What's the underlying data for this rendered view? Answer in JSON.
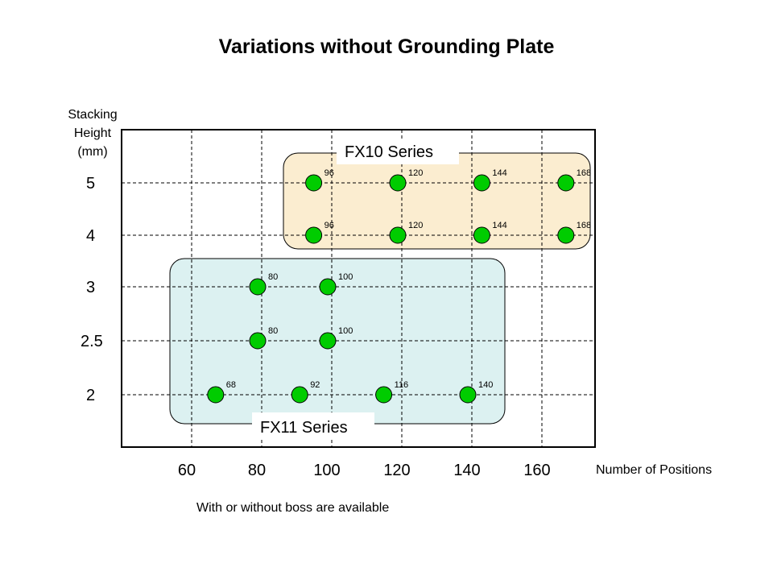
{
  "chart_data": {
    "type": "scatter",
    "title": "Variations without Grounding Plate",
    "xlabel": "Number of Positions",
    "ylabel": [
      "Stacking",
      "Height",
      "(mm)"
    ],
    "footnote": "With or without boss are available",
    "x_ticks": [
      "60",
      "80",
      "100",
      "120",
      "140",
      "160"
    ],
    "x_tick_values": [
      60,
      80,
      100,
      120,
      140,
      160
    ],
    "xlim": [
      40,
      175
    ],
    "y_categories": [
      "5",
      "4",
      "3",
      "2.5",
      "2"
    ],
    "grid": true,
    "series": [
      {
        "name": "FX10 Series",
        "points": [
          {
            "x": 96,
            "y": "5",
            "label": "96"
          },
          {
            "x": 120,
            "y": "5",
            "label": "120"
          },
          {
            "x": 144,
            "y": "5",
            "label": "144"
          },
          {
            "x": 168,
            "y": "5",
            "label": "168"
          },
          {
            "x": 96,
            "y": "4",
            "label": "96"
          },
          {
            "x": 120,
            "y": "4",
            "label": "120"
          },
          {
            "x": 144,
            "y": "4",
            "label": "144"
          },
          {
            "x": 168,
            "y": "4",
            "label": "168"
          }
        ]
      },
      {
        "name": "FX11 Series",
        "points": [
          {
            "x": 80,
            "y": "3",
            "label": "80"
          },
          {
            "x": 100,
            "y": "3",
            "label": "100"
          },
          {
            "x": 80,
            "y": "2.5",
            "label": "80"
          },
          {
            "x": 100,
            "y": "2.5",
            "label": "100"
          },
          {
            "x": 68,
            "y": "2",
            "label": "68"
          },
          {
            "x": 92,
            "y": "2",
            "label": "92"
          },
          {
            "x": 116,
            "y": "2",
            "label": "116"
          },
          {
            "x": 140,
            "y": "2",
            "label": "140"
          }
        ]
      }
    ],
    "colors": {
      "marker_fill": "#00cc00",
      "marker_stroke": "#000000",
      "fx10_box": "#fbedd0",
      "fx11_box": "#dcf1f1"
    }
  }
}
